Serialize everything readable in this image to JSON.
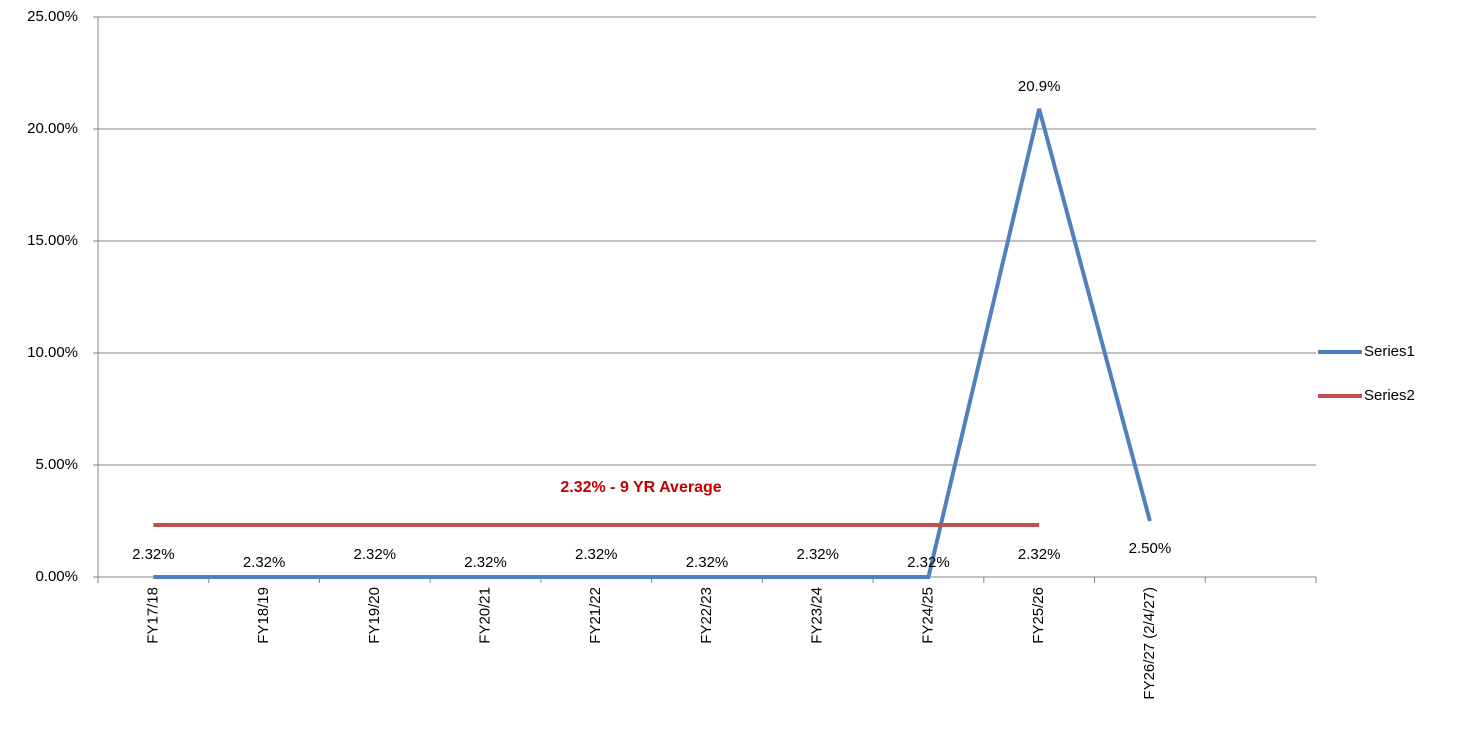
{
  "chart_data": {
    "type": "line",
    "categories": [
      "FY17/18",
      "FY18/19",
      "FY19/20",
      "FY20/21",
      "FY21/22",
      "FY22/23",
      "FY23/24",
      "FY24/25",
      "FY25/26",
      "FY26/27 (2/4/27)",
      null
    ],
    "series": [
      {
        "name": "Series1",
        "color": "#4f81bd",
        "values": [
          0,
          0,
          0,
          0,
          0,
          0,
          0,
          0,
          20.9,
          2.5,
          null
        ],
        "value_labels": [
          null,
          null,
          null,
          null,
          null,
          null,
          null,
          null,
          "20.9%",
          "2.50%",
          null
        ]
      },
      {
        "name": "Series2",
        "color": "#c0504d",
        "values": [
          2.32,
          2.32,
          2.32,
          2.32,
          2.32,
          2.32,
          2.32,
          2.32,
          2.32,
          null,
          null
        ],
        "value_labels": [
          "2.32%",
          "2.32%",
          "2.32%",
          "2.32%",
          "2.32%",
          "2.32%",
          "2.32%",
          "2.32%",
          "2.32%",
          null,
          null
        ]
      }
    ],
    "annotation": "2.32% - 9 YR Average",
    "ylim": [
      0,
      25
    ],
    "yticks": [
      {
        "value": 0,
        "label": "0.00%"
      },
      {
        "value": 5,
        "label": "5.00%"
      },
      {
        "value": 10,
        "label": "10.00%"
      },
      {
        "value": 15,
        "label": "15.00%"
      },
      {
        "value": 20,
        "label": "20.00%"
      },
      {
        "value": 25,
        "label": "25.00%"
      }
    ],
    "grid": true,
    "legend": "right"
  }
}
